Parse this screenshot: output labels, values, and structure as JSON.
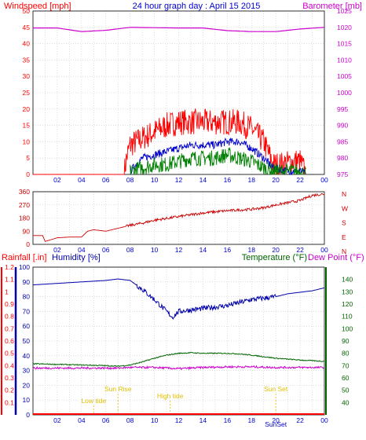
{
  "header": {
    "left_label": "Windspeed [mph]",
    "center_label": "24 hour graph day : April 15 2015",
    "right_label": "Barometer [mb]"
  },
  "colors": {
    "axis_frame": "#0000cc",
    "grid": "#c8c8c8",
    "windspeed": "#ff0000",
    "avg_wind": "#0000cc",
    "gust_low": "#008000",
    "barometer": "#cc00cc",
    "direction": "#cc0000",
    "rainfall": "#ff0000",
    "humidity": "#0000aa",
    "temperature": "#006400",
    "dewpoint": "#cc00cc",
    "astro": "#e0c000"
  },
  "bottom_header": {
    "rainfall_label": "Rainfall [.in]",
    "humidity_label": "Humidity [%]",
    "temperature_label": "Temperature (°F)",
    "dewpoint_label": "Dew Point (°F)"
  },
  "chart_data": [
    {
      "type": "line",
      "panel": "wind-barometer",
      "x_ticks": [
        "02",
        "04",
        "06",
        "08",
        "10",
        "12",
        "14",
        "16",
        "18",
        "20",
        "22",
        "00"
      ],
      "xlim": [
        0,
        24
      ],
      "y_left_ticks": [
        0,
        5,
        10,
        15,
        20,
        25,
        30,
        35,
        40,
        45,
        50
      ],
      "ylim_left": [
        0,
        50
      ],
      "y_right_ticks": [
        975,
        980,
        985,
        990,
        995,
        1000,
        1005,
        1010,
        1015,
        1020,
        1025
      ],
      "ylim_right": [
        975,
        1025
      ],
      "series": [
        {
          "color_key": "windspeed",
          "x": [
            0,
            7.5,
            7.7,
            8,
            9,
            10,
            11,
            12,
            13,
            14,
            15,
            16,
            17,
            18,
            19,
            19.8,
            20.5,
            21.5,
            22,
            22.5
          ],
          "values": [
            0,
            0,
            5,
            9,
            11,
            13,
            15,
            16,
            16,
            16,
            16,
            16,
            16,
            14,
            10,
            3,
            3,
            4,
            4,
            0
          ]
        },
        {
          "color_key": "avg_wind",
          "x": [
            8,
            9,
            10,
            11,
            12,
            13,
            14,
            15,
            16,
            17,
            18,
            19,
            19.8,
            21,
            22,
            22.5
          ],
          "values": [
            1,
            5,
            6,
            7,
            8,
            9,
            9,
            9,
            10,
            10,
            8,
            5,
            2,
            1,
            1,
            0
          ]
        },
        {
          "color_key": "gust_low",
          "x": [
            8,
            9,
            10,
            11,
            12,
            13,
            14,
            15,
            16,
            17,
            18,
            19,
            19.8,
            21,
            22,
            22.5
          ],
          "values": [
            1,
            2,
            3,
            3,
            4,
            5,
            5,
            5,
            6,
            5,
            4,
            2,
            1,
            1,
            1,
            0
          ]
        },
        {
          "color_key": "barometer",
          "x": [
            0,
            2,
            4,
            6,
            8,
            10,
            12,
            14,
            16,
            18,
            20,
            22,
            24
          ],
          "values": [
            1019.8,
            1019.8,
            1018.7,
            1019.1,
            1020.0,
            1019.9,
            1019.8,
            1019.8,
            1019.0,
            1018.7,
            1018.7,
            1019.5,
            1020.0
          ]
        }
      ]
    },
    {
      "type": "line",
      "panel": "wind-direction",
      "x_ticks": [
        "02",
        "04",
        "06",
        "08",
        "10",
        "12",
        "14",
        "16",
        "18",
        "20",
        "22",
        "00"
      ],
      "xlim": [
        0,
        24
      ],
      "y_ticks": [
        0,
        90,
        180,
        270,
        360
      ],
      "ylim": [
        0,
        360
      ],
      "y_right_labels": [
        "N",
        "W",
        "S",
        "E",
        "N"
      ],
      "series": [
        {
          "color_key": "direction",
          "x": [
            0,
            0.8,
            1,
            2,
            3,
            4,
            4.5,
            5,
            6,
            7,
            8,
            9,
            10,
            12,
            14,
            16,
            18,
            19,
            20,
            21,
            22,
            23,
            24
          ],
          "values": [
            60,
            60,
            20,
            45,
            50,
            50,
            90,
            100,
            90,
            110,
            130,
            145,
            165,
            190,
            215,
            230,
            240,
            250,
            270,
            285,
            300,
            335,
            345
          ]
        }
      ]
    },
    {
      "type": "line",
      "panel": "rain-humidity-temperature",
      "x_ticks": [
        "02",
        "04",
        "06",
        "08",
        "10",
        "12",
        "14",
        "16",
        "18",
        "20",
        "22",
        "00"
      ],
      "xlim": [
        0,
        24
      ],
      "y_left_ticks": [
        0,
        10,
        20,
        30,
        40,
        50,
        60,
        70,
        80,
        90,
        100
      ],
      "ylim_left": [
        0,
        100
      ],
      "y_rain_ticks": [
        0,
        0.1,
        0.2,
        0.3,
        0.4,
        0.5,
        0.6,
        0.7,
        0.8,
        0.9,
        1,
        1.1,
        1.2
      ],
      "ylim_rain": [
        0,
        1.2
      ],
      "y_right_ticks": [
        40,
        50,
        60,
        70,
        80,
        90,
        100,
        110,
        120,
        130,
        140
      ],
      "ylim_right": [
        30,
        150
      ],
      "series": [
        {
          "color_key": "humidity",
          "x": [
            0,
            2,
            4,
            6,
            7,
            8,
            9,
            10,
            11,
            11.5,
            12,
            14,
            16,
            18,
            20,
            21,
            22,
            23,
            24
          ],
          "values": [
            88,
            89,
            90,
            91,
            92,
            91,
            85,
            78,
            70,
            66,
            70,
            72,
            74,
            78,
            80,
            82,
            83,
            84,
            86
          ]
        },
        {
          "color_key": "temperature",
          "x": [
            0,
            2,
            4,
            6,
            7,
            8,
            9,
            10,
            11,
            12,
            13,
            14,
            15,
            16,
            17,
            18,
            20,
            22,
            24
          ],
          "values": [
            71.5,
            71.0,
            70.5,
            70.0,
            69.5,
            70.5,
            73,
            76,
            78.5,
            80,
            80.5,
            80,
            80,
            80,
            79.5,
            78.5,
            76,
            74.5,
            73.5
          ]
        },
        {
          "color_key": "dewpoint",
          "x": [
            0,
            2,
            4,
            6,
            7,
            8,
            10,
            11,
            12,
            14,
            16,
            18,
            20,
            22,
            24
          ],
          "values": [
            68,
            68,
            68,
            68,
            68,
            68.5,
            68.5,
            68,
            67.5,
            68.5,
            69,
            69,
            68.5,
            68.5,
            68.5
          ]
        },
        {
          "color_key": "rainfall",
          "x": [
            0,
            24
          ],
          "values": [
            0,
            0
          ]
        }
      ],
      "annotations": [
        {
          "label": "Low tide",
          "x": 5
        },
        {
          "label": "Sun Rise",
          "x": 7
        },
        {
          "label": "High tide",
          "x": 11.3
        },
        {
          "label": "Sun Set",
          "x": 20
        },
        {
          "label": "SunSet",
          "x": 20
        }
      ]
    }
  ]
}
